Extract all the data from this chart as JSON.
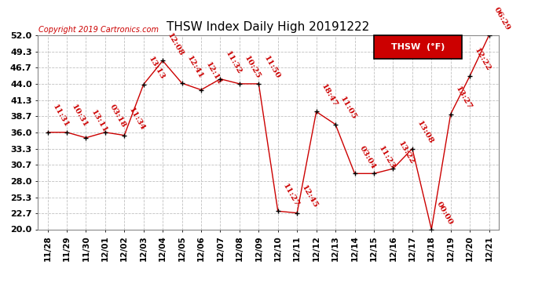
{
  "title": "THSW Index Daily High 20191222",
  "copyright": "Copyright 2019 Cartronics.com",
  "legend_label": "THSW  (°F)",
  "dates": [
    "11/28",
    "11/29",
    "11/30",
    "12/01",
    "12/02",
    "12/03",
    "12/04",
    "12/05",
    "12/06",
    "12/07",
    "12/08",
    "12/09",
    "12/10",
    "12/11",
    "12/12",
    "12/13",
    "12/14",
    "12/15",
    "12/16",
    "12/17",
    "12/18",
    "12/19",
    "12/20",
    "12/21"
  ],
  "values": [
    36.0,
    36.0,
    35.1,
    36.0,
    35.5,
    43.9,
    47.8,
    44.1,
    43.0,
    44.8,
    44.0,
    44.0,
    23.0,
    22.7,
    39.4,
    37.3,
    29.2,
    29.2,
    30.0,
    33.3,
    20.0,
    39.0,
    45.3,
    52.0
  ],
  "annotations": [
    "11:31",
    "10:31",
    "13:11",
    "03:18",
    "11:34",
    "13:13",
    "12:08",
    "12:41",
    "12:11",
    "11:32",
    "10:25",
    "11:50",
    "11:27",
    "12:45",
    "18:47",
    "11:05",
    "03:04",
    "11:23",
    "13:22",
    "13:08",
    "00:00",
    "13:27",
    "12:22",
    "06:29"
  ],
  "ylim": [
    20.0,
    52.0
  ],
  "yticks": [
    20.0,
    22.7,
    25.3,
    28.0,
    30.7,
    33.3,
    36.0,
    38.7,
    41.3,
    44.0,
    46.7,
    49.3,
    52.0
  ],
  "line_color": "#cc0000",
  "marker_color": "#000000",
  "bg_color": "#ffffff",
  "grid_color": "#c0c0c0",
  "title_fontsize": 11,
  "annotation_fontsize": 7.5,
  "legend_bg": "#cc0000",
  "legend_text_color": "#ffffff"
}
